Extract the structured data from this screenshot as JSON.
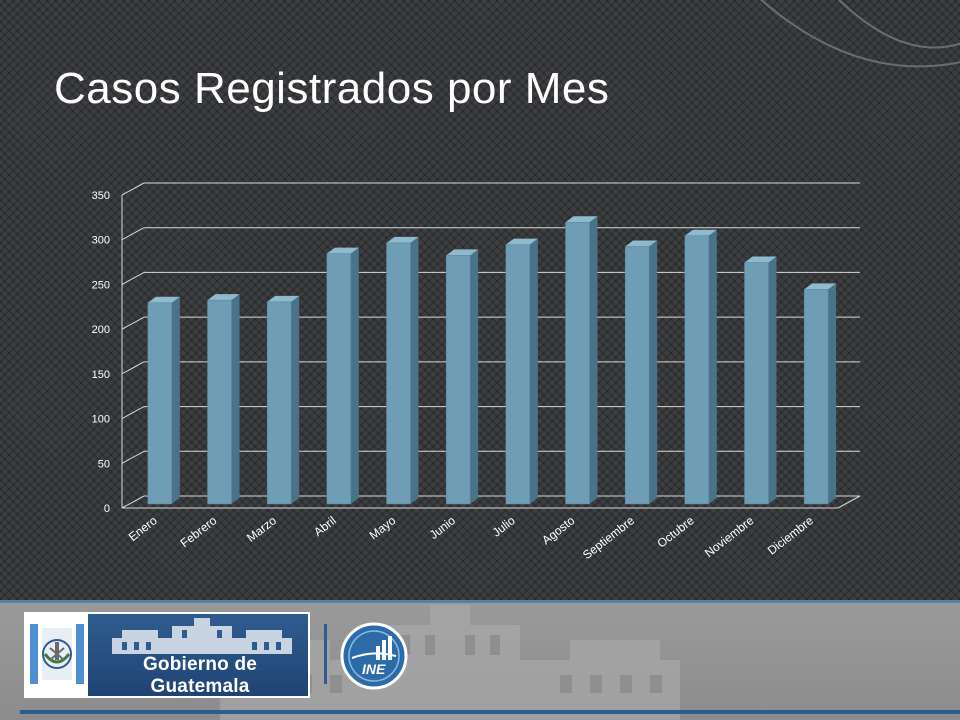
{
  "slide": {
    "title": "Casos Registrados por Mes"
  },
  "footer": {
    "gov_name": "Gobierno de Guatemala",
    "ine_text": "INE"
  },
  "colors": {
    "background": "#3c3e41",
    "bar_front": "#6e9db5",
    "bar_side": "#4a7389",
    "bar_top": "#8fb9cc",
    "gridline": "#d8d8d8",
    "gov_blue": "#2f5c8e"
  },
  "icons": [
    "guatemala-crest-icon",
    "palace-icon",
    "ine-logo-icon"
  ],
  "chart_data": {
    "type": "bar",
    "title": "",
    "xlabel": "",
    "ylabel": "",
    "ylim": [
      0,
      350
    ],
    "yticks": [
      0,
      50,
      100,
      150,
      200,
      250,
      300,
      350
    ],
    "grid": true,
    "legend": "none",
    "categories": [
      "Enero",
      "Febrero",
      "Marzo",
      "Abril",
      "Mayo",
      "Junio",
      "Julio",
      "Agosto",
      "Septiembre",
      "Octubre",
      "Noviembre",
      "Diciembre"
    ],
    "values": [
      225,
      228,
      226,
      280,
      292,
      278,
      290,
      315,
      288,
      300,
      270,
      240
    ]
  }
}
